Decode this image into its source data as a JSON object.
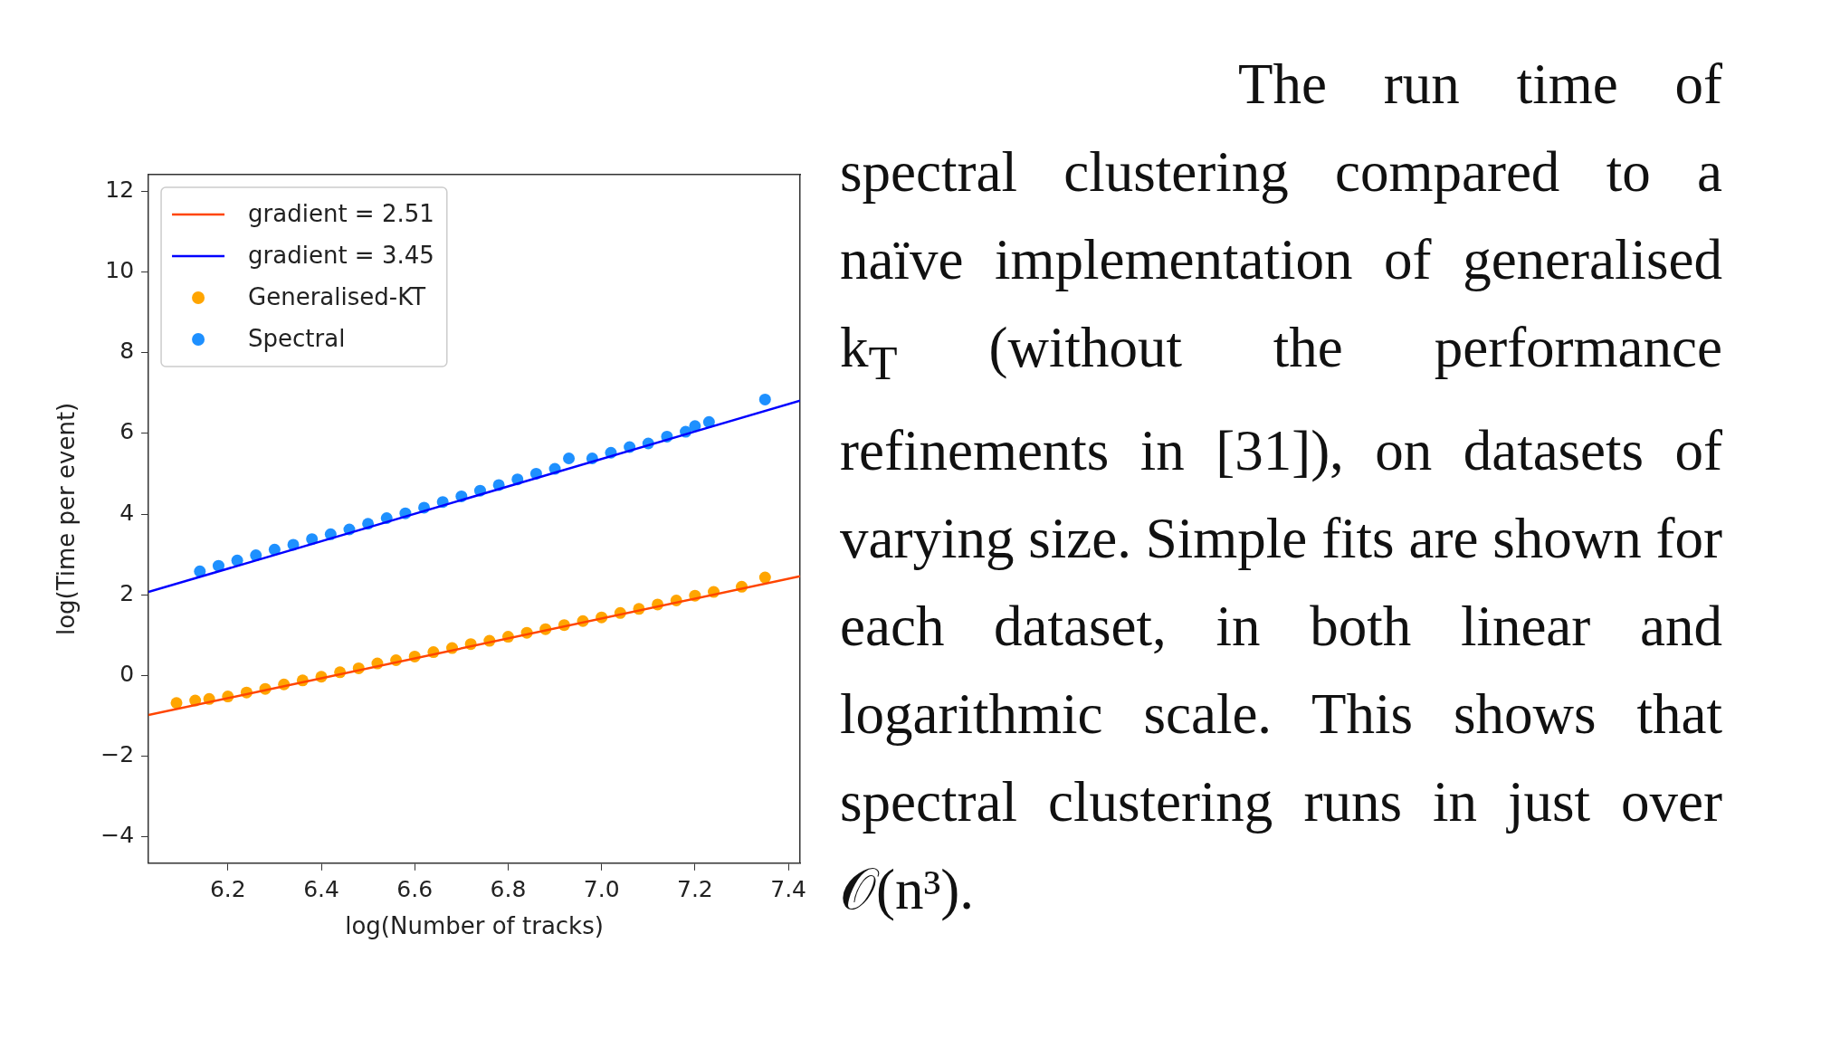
{
  "chart_data": {
    "type": "scatter",
    "xlabel": "log(Number of tracks)",
    "ylabel": "log(Time per event)",
    "xlim": [
      6.03,
      7.425
    ],
    "ylim": [
      -4.65,
      12.41
    ],
    "xticks": [
      6.2,
      6.4,
      6.6,
      6.8,
      {
        "value": 7,
        "label": "7.0"
      },
      7.2,
      7.4
    ],
    "yticks": [
      {
        "value": -4,
        "label": "−4"
      },
      {
        "value": -2,
        "label": "−2"
      },
      0,
      2,
      4,
      6,
      8,
      10,
      12
    ],
    "legend": "top left",
    "grid": false,
    "series": [
      {
        "name": "gradient = 2.51",
        "type": "line",
        "marker": "none",
        "color": "#ff4500",
        "x": [
          6.03,
          7.425
        ],
        "values": [
          -0.98,
          2.46
        ]
      },
      {
        "name": "gradient = 3.45",
        "type": "line",
        "marker": "none",
        "color": "#0000ff",
        "x": [
          6.03,
          7.425
        ],
        "values": [
          2.07,
          6.81
        ]
      },
      {
        "name": "Generalised-KT",
        "marker": "circle",
        "color": "#ffa500",
        "x": [
          6.09,
          6.13,
          6.16,
          6.2,
          6.24,
          6.28,
          6.32,
          6.36,
          6.4,
          6.44,
          6.48,
          6.52,
          6.56,
          6.6,
          6.64,
          6.68,
          6.72,
          6.76,
          6.8,
          6.84,
          6.88,
          6.92,
          6.96,
          7.0,
          7.04,
          7.08,
          7.12,
          7.16,
          7.2,
          7.24,
          7.3,
          7.35
        ],
        "values": [
          -0.68,
          -0.62,
          -0.58,
          -0.52,
          -0.42,
          -0.33,
          -0.22,
          -0.12,
          -0.03,
          0.08,
          0.18,
          0.3,
          0.38,
          0.47,
          0.58,
          0.68,
          0.78,
          0.86,
          0.96,
          1.06,
          1.15,
          1.25,
          1.35,
          1.44,
          1.55,
          1.65,
          1.76,
          1.86,
          1.98,
          2.07,
          2.2,
          2.43
        ]
      },
      {
        "name": "Spectral",
        "marker": "circle",
        "color": "#1e90ff",
        "x": [
          6.14,
          6.18,
          6.22,
          6.26,
          6.3,
          6.34,
          6.38,
          6.42,
          6.46,
          6.5,
          6.54,
          6.58,
          6.62,
          6.66,
          6.7,
          6.74,
          6.78,
          6.82,
          6.86,
          6.9,
          6.93,
          6.98,
          7.02,
          7.06,
          7.1,
          7.14,
          7.18,
          7.2,
          7.23,
          7.35
        ],
        "values": [
          2.58,
          2.72,
          2.85,
          2.98,
          3.12,
          3.24,
          3.38,
          3.5,
          3.62,
          3.76,
          3.9,
          4.02,
          4.16,
          4.3,
          4.44,
          4.58,
          4.72,
          4.86,
          5.0,
          5.12,
          5.38,
          5.38,
          5.52,
          5.66,
          5.75,
          5.92,
          6.04,
          6.18,
          6.28,
          6.84
        ]
      }
    ],
    "annotations": [
      "The run time of spectral clustering compared to a naïve implementation of generalised k$_{T}$ (without the performance refinements in [31]), on datasets of varying size. Simple fits are shown for each dataset, in both linear and logarithmic scale. This shows that spectral clustering runs in just over 𝒪(n³)."
    ]
  }
}
